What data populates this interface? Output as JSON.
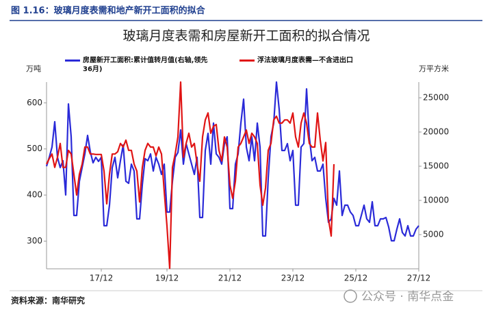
{
  "header": {
    "title": "图 1.16：玻璃月度表需和地产新开工面积的拟合"
  },
  "footer": {
    "source": "资料来源：南华研究"
  },
  "watermark": "公众号 · 南华点金",
  "chart_data": {
    "type": "line",
    "title": "玻璃月度表需和房屋新开工面积的拟合情况",
    "y_label": "万吨",
    "y2_label": "万平方米",
    "categories": [
      null,
      null,
      null,
      null,
      null,
      null,
      null,
      null,
      null,
      null,
      null,
      null,
      null,
      null,
      null,
      null,
      null,
      null,
      null,
      null,
      "17/12",
      null,
      null,
      null,
      null,
      null,
      null,
      null,
      null,
      null,
      null,
      null,
      null,
      null,
      null,
      null,
      null,
      null,
      null,
      null,
      null,
      null,
      null,
      null,
      "19/12",
      null,
      null,
      null,
      null,
      null,
      null,
      null,
      null,
      null,
      null,
      null,
      null,
      null,
      null,
      null,
      null,
      null,
      null,
      null,
      null,
      null,
      null,
      "21/12",
      null,
      null,
      null,
      null,
      null,
      null,
      null,
      null,
      null,
      null,
      null,
      null,
      null,
      null,
      null,
      null,
      null,
      null,
      null,
      null,
      null,
      null,
      "23/12",
      null,
      null,
      null,
      null,
      null,
      null,
      null,
      null,
      null,
      null,
      null,
      null,
      null,
      null,
      null,
      null,
      null,
      null,
      null,
      null,
      null,
      null,
      "25/12",
      null,
      null,
      null,
      null,
      null,
      null,
      null,
      null,
      null,
      null,
      null,
      null,
      null,
      null,
      null,
      null,
      null,
      null,
      null,
      null,
      null,
      null,
      "27/12"
    ],
    "series": [
      {
        "name": "房屋新开工面积:累计值转月值(右轴,领先36月)",
        "color": "#2a2ad8",
        "axis": "y2",
        "values": [
          15000,
          16300,
          17800,
          21500,
          16300,
          14800,
          15800,
          10800,
          24100,
          19300,
          7800,
          7800,
          12800,
          14800,
          16800,
          19500,
          17100,
          15500,
          16300,
          15700,
          16300,
          6300,
          6300,
          9300,
          14800,
          16300,
          13300,
          15800,
          18100,
          12800,
          12500,
          15300,
          14300,
          7300,
          7300,
          12300,
          16100,
          15800,
          16800,
          14300,
          16300,
          15300,
          13800,
          15300,
          8300,
          8300,
          12800,
          16300,
          17000,
          20300,
          15300,
          18300,
          16800,
          15300,
          13800,
          16300,
          7500,
          7500,
          17300,
          19800,
          15300,
          21300,
          16800,
          16300,
          15300,
          18300,
          19300,
          8800,
          8800,
          15300,
          16800,
          21300,
          24800,
          17800,
          15800,
          19300,
          15800,
          21300,
          17800,
          4800,
          4800,
          13300,
          19300,
          21300,
          27300,
          23300,
          17300,
          17300,
          18300,
          15800,
          17300,
          9300,
          9300,
          17800,
          18300,
          26300,
          19300,
          15800,
          16300,
          14300,
          14300,
          15300,
          10300,
          6800,
          7300,
          10300,
          9300,
          14300,
          7800,
          9300,
          9300,
          8300,
          7800,
          6300,
          6300,
          7800,
          9300,
          7300,
          6800,
          9800,
          6300,
          6300,
          7300,
          7300,
          7500,
          6100,
          4100,
          4100,
          5800,
          7300,
          5300,
          4800,
          6300,
          4800,
          4800,
          5800,
          6300
        ]
      },
      {
        "name": "浮法玻璃月度表需—不含进出口",
        "color": "#e01414",
        "values": [
          467,
          479,
          489,
          460,
          482,
          512,
          460,
          460,
          497,
          489,
          445,
          400,
          445,
          467,
          504,
          504,
          489,
          489,
          488,
          488,
          488,
          452,
          381,
          445,
          489,
          489,
          494,
          512,
          504,
          519,
          497,
          497,
          467,
          452,
          385,
          460,
          497,
          512,
          504,
          504,
          485,
          504,
          489,
          408,
          333,
          241,
          460,
          489,
          526,
          645,
          482,
          512,
          534,
          504,
          512,
          467,
          430,
          526,
          563,
          578,
          534,
          549,
          553,
          497,
          474,
          526,
          504,
          422,
          393,
          430,
          504,
          512,
          526,
          541,
          512,
          534,
          526,
          512,
          422,
          378,
          415,
          497,
          512,
          563,
          571,
          556,
          556,
          563,
          563,
          556,
          578,
          526,
          504,
          556,
          578,
          556,
          512,
          504,
          504,
          578,
          519,
          474,
          514,
          348,
          311,
          467,
          null,
          null,
          null,
          null,
          null,
          null,
          null,
          null,
          null,
          null,
          null,
          null,
          null,
          null,
          null,
          null,
          null,
          null,
          null,
          null,
          null,
          null,
          null,
          null,
          null,
          null,
          null,
          null,
          null,
          null,
          null
        ]
      }
    ],
    "ylim": [
      240,
      645
    ],
    "yticks": [
      300,
      400,
      500,
      600
    ],
    "y2lim": [
      0,
      27300
    ],
    "y2ticks": [
      5000,
      10000,
      15000,
      20000,
      25000
    ]
  }
}
